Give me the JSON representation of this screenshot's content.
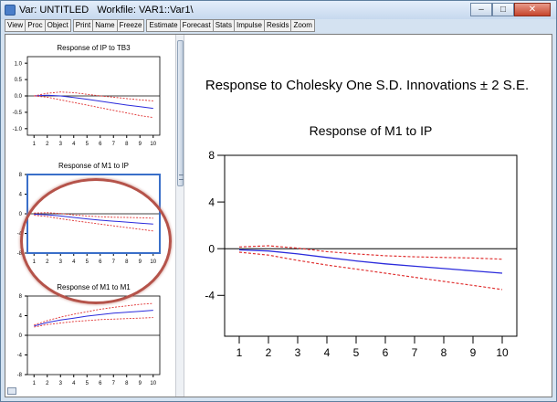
{
  "window": {
    "title": "Var: UNTITLED   Workfile: VAR1::Var1\\",
    "controls": [
      "–",
      "□",
      "✕"
    ]
  },
  "toolbar": {
    "group1": [
      "View",
      "Proc",
      "Object"
    ],
    "group2": [
      "Print",
      "Name",
      "Freeze"
    ],
    "group3": [
      "Estimate",
      "Forecast",
      "Stats",
      "Impulse",
      "Resids",
      "Zoom"
    ]
  },
  "colors": {
    "response": "#2b2bdc",
    "bands": "#e03030",
    "highlight": "#b5534a",
    "selection": "#3a6fc9"
  },
  "main_chart": {
    "heading": "Response to Cholesky One S.D. Innovations ± 2 S.E."
  },
  "chart_data": [
    {
      "type": "line",
      "title": "Response of M1 to IP",
      "x": [
        1,
        2,
        3,
        4,
        5,
        6,
        7,
        8,
        9,
        10
      ],
      "xticks": [
        "1",
        "2",
        "3",
        "4",
        "5",
        "6",
        "7",
        "8",
        "9",
        "10"
      ],
      "yticks": [
        "8",
        "4",
        "0",
        "-4"
      ],
      "ylim": [
        -7.5,
        8
      ],
      "zero_line": true,
      "series": [
        {
          "role": "response",
          "values": [
            -0.1,
            -0.2,
            -0.45,
            -0.75,
            -1.05,
            -1.3,
            -1.5,
            -1.7,
            -1.9,
            -2.1
          ]
        },
        {
          "role": "upper",
          "values": [
            0.15,
            0.25,
            0.05,
            -0.25,
            -0.45,
            -0.6,
            -0.7,
            -0.75,
            -0.8,
            -0.9
          ]
        },
        {
          "role": "lower",
          "values": [
            -0.3,
            -0.55,
            -1.0,
            -1.4,
            -1.75,
            -2.1,
            -2.45,
            -2.8,
            -3.15,
            -3.5
          ]
        }
      ]
    },
    {
      "type": "line",
      "title": "Response of IP to TB3",
      "x": [
        1,
        2,
        3,
        4,
        5,
        6,
        7,
        8,
        9,
        10
      ],
      "xticks": [
        "1",
        "2",
        "3",
        "4",
        "5",
        "6",
        "7",
        "8",
        "9",
        "10"
      ],
      "yticks": [
        "1.0",
        "0.5",
        "0.0",
        "-0.5",
        "-1.0"
      ],
      "ylim": [
        -1.2,
        1.2
      ],
      "zero_line": true,
      "series": [
        {
          "role": "response",
          "values": [
            0.0,
            0.02,
            0.0,
            -0.05,
            -0.1,
            -0.16,
            -0.22,
            -0.28,
            -0.33,
            -0.38
          ]
        },
        {
          "role": "upper",
          "values": [
            0.0,
            0.08,
            0.12,
            0.1,
            0.05,
            0.0,
            -0.04,
            -0.08,
            -0.12,
            -0.15
          ]
        },
        {
          "role": "lower",
          "values": [
            0.0,
            -0.04,
            -0.12,
            -0.2,
            -0.28,
            -0.36,
            -0.44,
            -0.52,
            -0.6,
            -0.66
          ]
        }
      ]
    },
    {
      "type": "line",
      "title": "Response of M1 to IP",
      "x": [
        1,
        2,
        3,
        4,
        5,
        6,
        7,
        8,
        9,
        10
      ],
      "xticks": [
        "1",
        "2",
        "3",
        "4",
        "5",
        "6",
        "7",
        "8",
        "9",
        "10"
      ],
      "yticks": [
        "8",
        "4",
        "0",
        "-4",
        "-8"
      ],
      "ylim": [
        -8,
        8
      ],
      "zero_line": true,
      "series": [
        {
          "role": "response",
          "values": [
            -0.1,
            -0.2,
            -0.45,
            -0.75,
            -1.05,
            -1.3,
            -1.5,
            -1.7,
            -1.9,
            -2.1
          ]
        },
        {
          "role": "upper",
          "values": [
            0.15,
            0.25,
            0.05,
            -0.25,
            -0.45,
            -0.6,
            -0.7,
            -0.75,
            -0.8,
            -0.9
          ]
        },
        {
          "role": "lower",
          "values": [
            -0.3,
            -0.55,
            -1.0,
            -1.4,
            -1.75,
            -2.1,
            -2.45,
            -2.8,
            -3.15,
            -3.5
          ]
        }
      ]
    },
    {
      "type": "line",
      "title": "Response of M1 to M1",
      "x": [
        1,
        2,
        3,
        4,
        5,
        6,
        7,
        8,
        9,
        10
      ],
      "xticks": [
        "1",
        "2",
        "3",
        "4",
        "5",
        "6",
        "7",
        "8",
        "9",
        "10"
      ],
      "yticks": [
        "8",
        "4",
        "0",
        "-4",
        "-8"
      ],
      "ylim": [
        -8,
        8
      ],
      "zero_line": true,
      "series": [
        {
          "role": "response",
          "values": [
            1.9,
            2.6,
            3.1,
            3.5,
            3.9,
            4.2,
            4.5,
            4.7,
            4.9,
            5.1
          ]
        },
        {
          "role": "upper",
          "values": [
            2.1,
            3.0,
            3.7,
            4.3,
            4.8,
            5.3,
            5.7,
            6.0,
            6.3,
            6.5
          ]
        },
        {
          "role": "lower",
          "values": [
            1.7,
            2.2,
            2.5,
            2.8,
            3.0,
            3.2,
            3.3,
            3.4,
            3.5,
            3.6
          ]
        }
      ]
    }
  ]
}
